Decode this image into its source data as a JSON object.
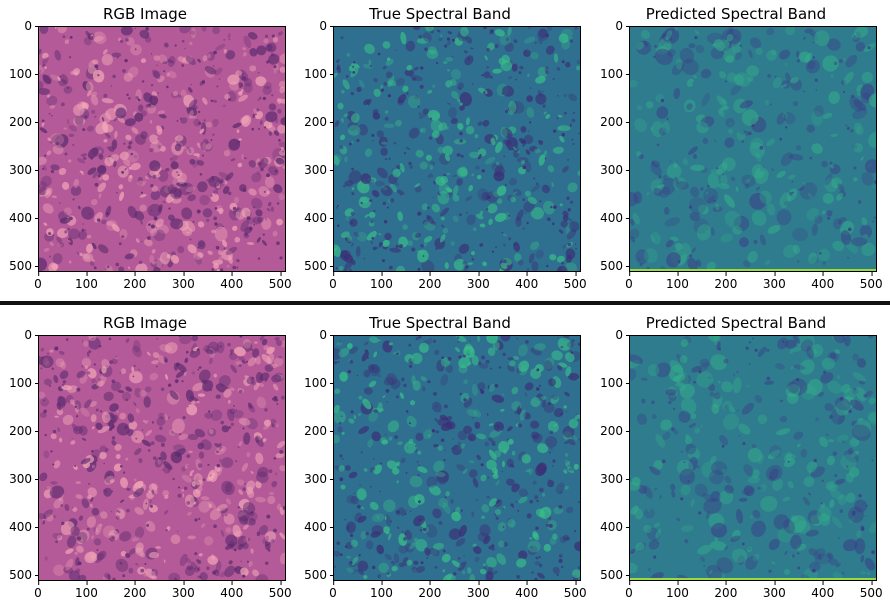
{
  "rows": [
    {
      "panels": [
        {
          "title": "RGB Image",
          "kind": "rgb",
          "seed": 11
        },
        {
          "title": "True Spectral Band",
          "kind": "true",
          "seed": 23
        },
        {
          "title": "Predicted Spectral Band",
          "kind": "pred",
          "seed": 37
        }
      ]
    },
    {
      "panels": [
        {
          "title": "RGB Image",
          "kind": "rgb",
          "seed": 53
        },
        {
          "title": "True Spectral Band",
          "kind": "true",
          "seed": 71
        },
        {
          "title": "Predicted Spectral Band",
          "kind": "pred",
          "seed": 89
        }
      ]
    }
  ],
  "axis": {
    "x_ticks": [
      "0",
      "100",
      "200",
      "300",
      "400",
      "500"
    ],
    "y_ticks": [
      "0",
      "100",
      "200",
      "300",
      "400",
      "500"
    ],
    "range": [
      0,
      512
    ]
  },
  "colors": {
    "rgb_base": "#b45a98",
    "rgb_light": "#f3a7b8",
    "rgb_dark": "#5b2a6e",
    "true_base": "#2f6f8f",
    "true_light": "#38c08a",
    "true_dark": "#3b2e76",
    "pred_base": "#2f7c8e",
    "pred_light": "#34b18a",
    "pred_dark": "#3a3c86",
    "edge_line": "#9bd93c"
  }
}
